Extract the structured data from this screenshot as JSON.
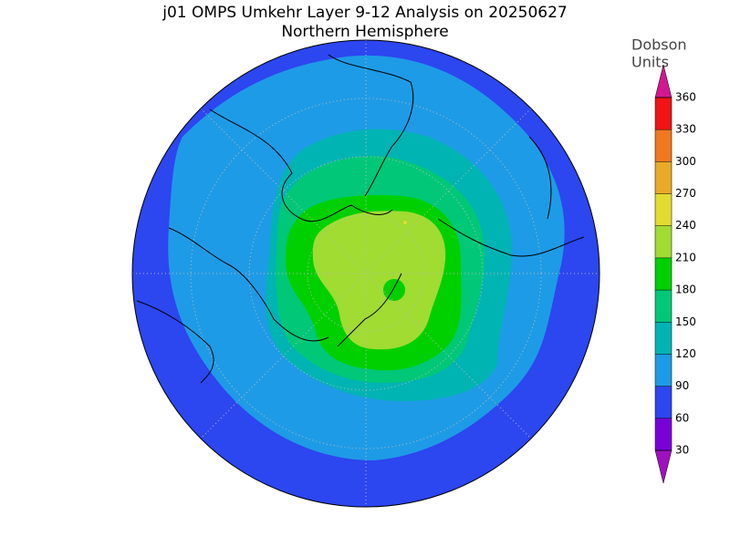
{
  "title": "j01 OMPS Umkehr Layer 9-12 Analysis on 20250627",
  "subtitle": "Northern Hemisphere",
  "colorbar": {
    "label": [
      "Dobson",
      "Units"
    ],
    "levels": [
      30,
      60,
      90,
      120,
      150,
      180,
      210,
      240,
      270,
      300,
      330,
      360
    ],
    "colors": [
      "#a010c0",
      "#7a00d8",
      "#2c46f0",
      "#1e9be6",
      "#00b4b4",
      "#00c878",
      "#00d000",
      "#a0dc32",
      "#e2dc30",
      "#e8aa28",
      "#f07820",
      "#f01414",
      "#d01890"
    ]
  }
}
